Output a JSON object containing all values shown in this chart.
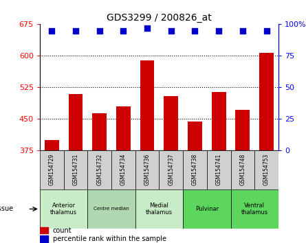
{
  "title": "GDS3299 / 200826_at",
  "samples": [
    "GSM154729",
    "GSM154731",
    "GSM154732",
    "GSM154734",
    "GSM154736",
    "GSM154737",
    "GSM154738",
    "GSM154741",
    "GSM154748",
    "GSM154753"
  ],
  "counts": [
    400,
    510,
    463,
    480,
    590,
    505,
    445,
    515,
    472,
    608
  ],
  "percentiles": [
    95,
    95,
    95,
    95,
    97,
    95,
    95,
    95,
    95,
    95
  ],
  "ylim_left": [
    375,
    675
  ],
  "ylim_right": [
    0,
    100
  ],
  "yticks_left": [
    375,
    450,
    525,
    600,
    675
  ],
  "yticks_right": [
    0,
    25,
    50,
    75,
    100
  ],
  "bar_color": "#cc0000",
  "dot_color": "#0000cc",
  "bar_width": 0.6,
  "tissues": [
    {
      "label": "Anterior\nthalamus",
      "start": 0,
      "end": 1,
      "color": "#c8ebc8"
    },
    {
      "label": "Centre median",
      "start": 2,
      "end": 3,
      "color": "#b0d8b0"
    },
    {
      "label": "Medial\nthalamus",
      "start": 4,
      "end": 5,
      "color": "#c8ebc8"
    },
    {
      "label": "Pulvinar",
      "start": 6,
      "end": 7,
      "color": "#5cd65c"
    },
    {
      "label": "Ventral\nthalamus",
      "start": 8,
      "end": 9,
      "color": "#5cd65c"
    }
  ],
  "tissue_label": "tissue",
  "hline_ticks": [
    450,
    525,
    600
  ],
  "xtick_bg": "#d0d0d0",
  "border_color": "black",
  "bar_color_legend": "#cc0000",
  "dot_color_legend": "#0000cc"
}
